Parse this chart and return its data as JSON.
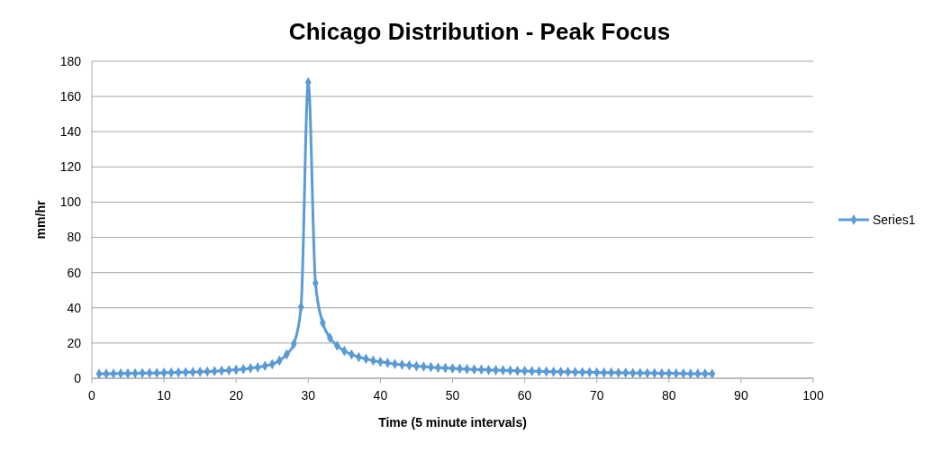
{
  "chart_data": {
    "type": "line",
    "title": "Chicago Distribution - Peak Focus",
    "xlabel": "Time (5 minute intervals)",
    "ylabel": "mm/hr",
    "x": [
      1,
      2,
      3,
      4,
      5,
      6,
      7,
      8,
      9,
      10,
      11,
      12,
      13,
      14,
      15,
      16,
      17,
      18,
      19,
      20,
      21,
      22,
      23,
      24,
      25,
      26,
      27,
      28,
      29,
      30,
      31,
      32,
      33,
      34,
      35,
      36,
      37,
      38,
      39,
      40,
      41,
      42,
      43,
      44,
      45,
      46,
      47,
      48,
      49,
      50,
      51,
      52,
      53,
      54,
      55,
      56,
      57,
      58,
      59,
      60,
      61,
      62,
      63,
      64,
      65,
      66,
      67,
      68,
      69,
      70,
      71,
      72,
      73,
      74,
      75,
      76,
      77,
      78,
      79,
      80,
      81,
      82,
      83,
      84,
      85,
      86
    ],
    "series": [
      {
        "name": "Series1",
        "color": "#5b9bd5",
        "values": [
          2.5,
          2.6,
          2.6,
          2.7,
          2.7,
          2.8,
          2.9,
          3.0,
          3.0,
          3.1,
          3.2,
          3.3,
          3.4,
          3.5,
          3.7,
          3.8,
          4.0,
          4.3,
          4.5,
          4.8,
          5.2,
          5.7,
          6.2,
          7.0,
          8.0,
          10.0,
          13.5,
          19.5,
          40.5,
          168,
          54,
          31.5,
          23,
          18.5,
          15.5,
          13.5,
          12,
          11,
          10,
          9.3,
          8.7,
          8.1,
          7.7,
          7.3,
          6.9,
          6.6,
          6.3,
          6.0,
          5.8,
          5.6,
          5.4,
          5.2,
          5.0,
          4.9,
          4.7,
          4.6,
          4.5,
          4.4,
          4.2,
          4.1,
          4.0,
          3.9,
          3.8,
          3.7,
          3.7,
          3.6,
          3.5,
          3.4,
          3.4,
          3.3,
          3.2,
          3.2,
          3.1,
          3.1,
          3.0,
          3.0,
          2.9,
          2.9,
          2.8,
          2.8,
          2.7,
          2.7,
          2.6,
          2.6,
          2.6,
          2.5
        ]
      }
    ],
    "xlim": [
      0,
      100
    ],
    "xticks": [
      0,
      10,
      20,
      30,
      40,
      50,
      60,
      70,
      80,
      90,
      100
    ],
    "ylim": [
      0,
      180
    ],
    "yticks": [
      0,
      20,
      40,
      60,
      80,
      100,
      120,
      140,
      160,
      180
    ],
    "grid": "y",
    "legend": "right",
    "marker": "diamond",
    "line_style": "solid"
  }
}
